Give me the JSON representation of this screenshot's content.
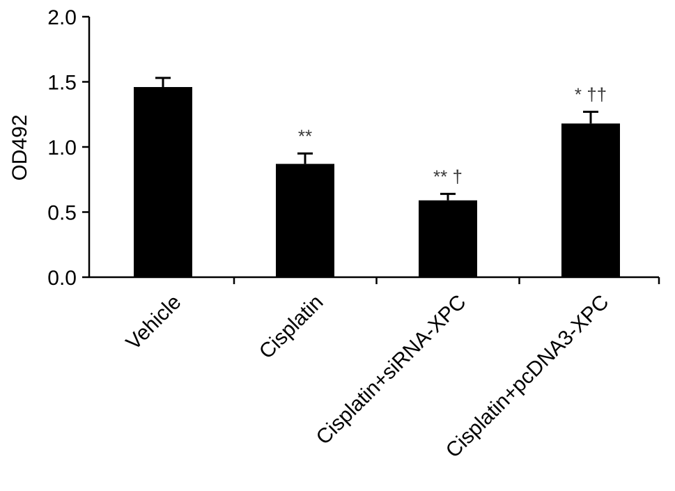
{
  "chart_data": {
    "type": "bar",
    "title": "",
    "xlabel": "",
    "ylabel": "OD492",
    "ylim": [
      0,
      2.0
    ],
    "yticks": [
      "0.0",
      "0.5",
      "1.0",
      "1.5",
      "2.0"
    ],
    "categories": [
      "Vehicle",
      "Cisplatin",
      "Cisplatin+siRNA-XPC",
      "Cisplatin+pcDNA3-XPC"
    ],
    "values": [
      1.46,
      0.87,
      0.59,
      1.18
    ],
    "errors": [
      0.07,
      0.08,
      0.05,
      0.09
    ],
    "annotations": [
      "",
      "**",
      "** †",
      "* ††"
    ],
    "colors": {
      "bar": "#000000",
      "annotation": "#3a3a3a"
    },
    "grid": false,
    "legend": "none"
  }
}
